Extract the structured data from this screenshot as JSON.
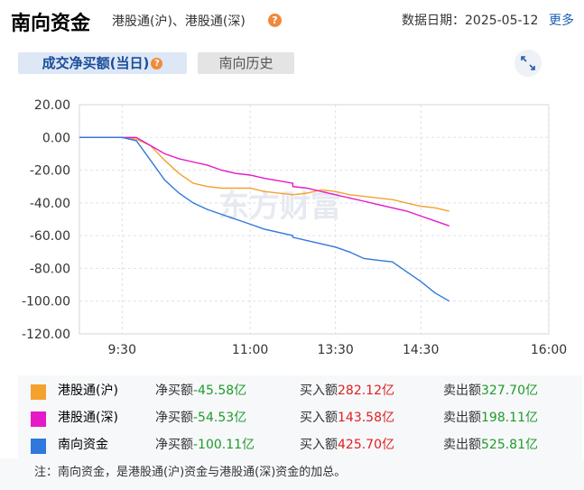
{
  "header": {
    "title": "南向资金",
    "subtitle": "港股通(沪)、港股通(深)",
    "date_label": "数据日期：2025-05-12",
    "more_link": "更多"
  },
  "tabs": [
    {
      "label": "成交净买额(当日)",
      "active": true
    },
    {
      "label": "南向历史",
      "active": false
    }
  ],
  "chart_data": {
    "type": "line",
    "y_ticks": [
      "20.00",
      "0.00",
      "-20.00",
      "-40.00",
      "-60.00",
      "-80.00",
      "-100.00",
      "-120.00"
    ],
    "x_ticks": [
      "9:30",
      "11:00",
      "13:30",
      "14:30",
      "16:00"
    ],
    "ylim": [
      -120,
      20
    ],
    "grid": true,
    "watermark": "东方财富",
    "series": [
      {
        "name": "港股通(沪)",
        "color": "#f5a12e",
        "x": [
          "9:00",
          "9:30",
          "9:40",
          "9:50",
          "10:00",
          "10:10",
          "10:20",
          "10:30",
          "10:40",
          "10:50",
          "11:00",
          "11:10",
          "11:30",
          "13:00",
          "13:10",
          "13:20",
          "13:30",
          "13:40",
          "13:50",
          "14:00",
          "14:10",
          "14:20",
          "14:30",
          "14:40",
          "14:50"
        ],
        "y": [
          0,
          0,
          -1,
          -5,
          -14,
          -22,
          -28,
          -30,
          -31,
          -31,
          -31,
          -33,
          -35,
          -35,
          -34,
          -32,
          -33,
          -35,
          -36,
          -37,
          -38,
          -40,
          -42,
          -43,
          -45
        ]
      },
      {
        "name": "港股通(深)",
        "color": "#e619c8",
        "x": [
          "9:00",
          "9:30",
          "9:40",
          "9:50",
          "10:00",
          "10:10",
          "10:20",
          "10:30",
          "10:40",
          "10:50",
          "11:00",
          "11:10",
          "11:30",
          "13:00",
          "13:10",
          "13:20",
          "13:30",
          "13:40",
          "13:50",
          "14:00",
          "14:10",
          "14:20",
          "14:30",
          "14:40",
          "14:50"
        ],
        "y": [
          0,
          0,
          0,
          -5,
          -10,
          -13,
          -15,
          -17,
          -20,
          -22,
          -23,
          -25,
          -28,
          -30,
          -31,
          -33,
          -35,
          -37,
          -39,
          -41,
          -43,
          -45,
          -48,
          -51,
          -54
        ]
      },
      {
        "name": "南向资金",
        "color": "#2f78dc",
        "x": [
          "9:00",
          "9:30",
          "9:40",
          "9:50",
          "10:00",
          "10:10",
          "10:20",
          "10:30",
          "10:40",
          "10:50",
          "11:00",
          "11:10",
          "11:30",
          "13:00",
          "13:10",
          "13:20",
          "13:30",
          "13:40",
          "13:50",
          "14:00",
          "14:10",
          "14:20",
          "14:30",
          "14:40",
          "14:50"
        ],
        "y": [
          0,
          0,
          -2,
          -14,
          -26,
          -34,
          -40,
          -44,
          -47,
          -50,
          -53,
          -56,
          -60,
          -61,
          -63,
          -65,
          -67,
          -70,
          -74,
          -75,
          -76,
          -82,
          -88,
          -95,
          -100
        ]
      }
    ]
  },
  "legend": [
    {
      "name": "港股通(沪)",
      "color": "#f5a12e",
      "net_label": "净买额",
      "net": "-45.58亿",
      "buy_label": "买入额",
      "buy": "282.12亿",
      "sell_label": "卖出额",
      "sell": "327.70亿"
    },
    {
      "name": "港股通(深)",
      "color": "#e619c8",
      "net_label": "净买额",
      "net": "-54.53亿",
      "buy_label": "买入额",
      "buy": "143.58亿",
      "sell_label": "卖出额",
      "sell": "198.11亿"
    },
    {
      "name": "南向资金",
      "color": "#2f78dc",
      "net_label": "净买额",
      "net": "-100.11亿",
      "buy_label": "买入额",
      "buy": "425.70亿",
      "sell_label": "卖出额",
      "sell": "525.81亿"
    }
  ],
  "note": "注：南向资金，是港股通(沪)资金与港股通(深)资金的加总。"
}
